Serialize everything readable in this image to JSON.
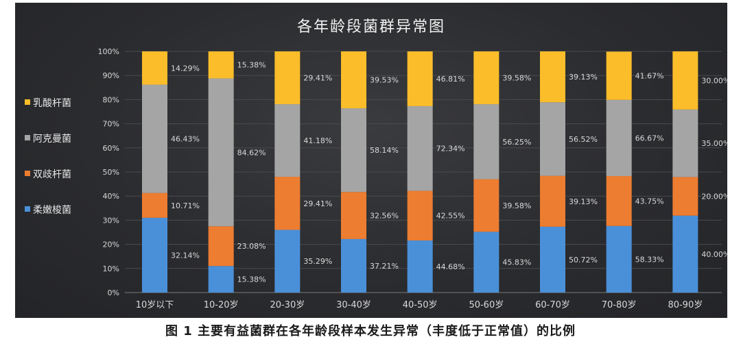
{
  "caption": "图 1 主要有益菌群在各年龄段样本发生异常（丰度低于正常值）的比例",
  "chart_data": {
    "type": "bar",
    "stacked": true,
    "title": "各年龄段菌群异常图",
    "categories": [
      "10岁以下",
      "10-20岁",
      "20-30岁",
      "30-40岁",
      "40-50岁",
      "50-60岁",
      "60-70岁",
      "70-80岁",
      "80-90岁"
    ],
    "y_ticks": [
      "0%",
      "10%",
      "20%",
      "30%",
      "40%",
      "50%",
      "60%",
      "70%",
      "80%",
      "90%",
      "100%"
    ],
    "ylim": [
      0,
      100
    ],
    "legend_position": "left",
    "series": [
      {
        "name": "柔嫩梭菌",
        "color": "#4a90d9",
        "stack_share": [
          31.0,
          11.0,
          26.0,
          22.2,
          21.6,
          25.2,
          27.3,
          27.6,
          31.9
        ],
        "labels": [
          "32.14%",
          "15.38%",
          "35.29%",
          "37.21%",
          "44.68%",
          "45.83%",
          "50.72%",
          "58.33%",
          "40.00%"
        ]
      },
      {
        "name": "双歧杆菌",
        "color": "#ed7d31",
        "stack_share": [
          10.3,
          16.5,
          22.0,
          19.5,
          20.6,
          21.8,
          21.1,
          20.7,
          16.0
        ],
        "labels": [
          "10.71%",
          "23.08%",
          "29.41%",
          "32.56%",
          "42.55%",
          "39.58%",
          "39.13%",
          "43.75%",
          "20.00%"
        ]
      },
      {
        "name": "阿克曼菌",
        "color": "#a5a5a5",
        "stack_share": [
          44.9,
          61.3,
          30.1,
          34.7,
          35.1,
          31.1,
          30.5,
          31.6,
          28.0
        ],
        "labels": [
          "46.43%",
          "84.62%",
          "41.18%",
          "58.14%",
          "72.34%",
          "56.25%",
          "56.52%",
          "66.67%",
          "35.00%"
        ]
      },
      {
        "name": "乳酸杆菌",
        "color": "#fbbd2a",
        "stack_share": [
          13.8,
          11.2,
          21.9,
          23.6,
          22.7,
          21.9,
          21.1,
          20.0,
          24.1
        ],
        "labels": [
          "14.29%",
          "15.38%",
          "29.41%",
          "39.53%",
          "46.81%",
          "39.58%",
          "39.13%",
          "41.67%",
          "30.00%"
        ]
      }
    ],
    "legend_order": [
      "乳酸杆菌",
      "阿克曼菌",
      "双歧杆菌",
      "柔嫩梭菌"
    ]
  }
}
